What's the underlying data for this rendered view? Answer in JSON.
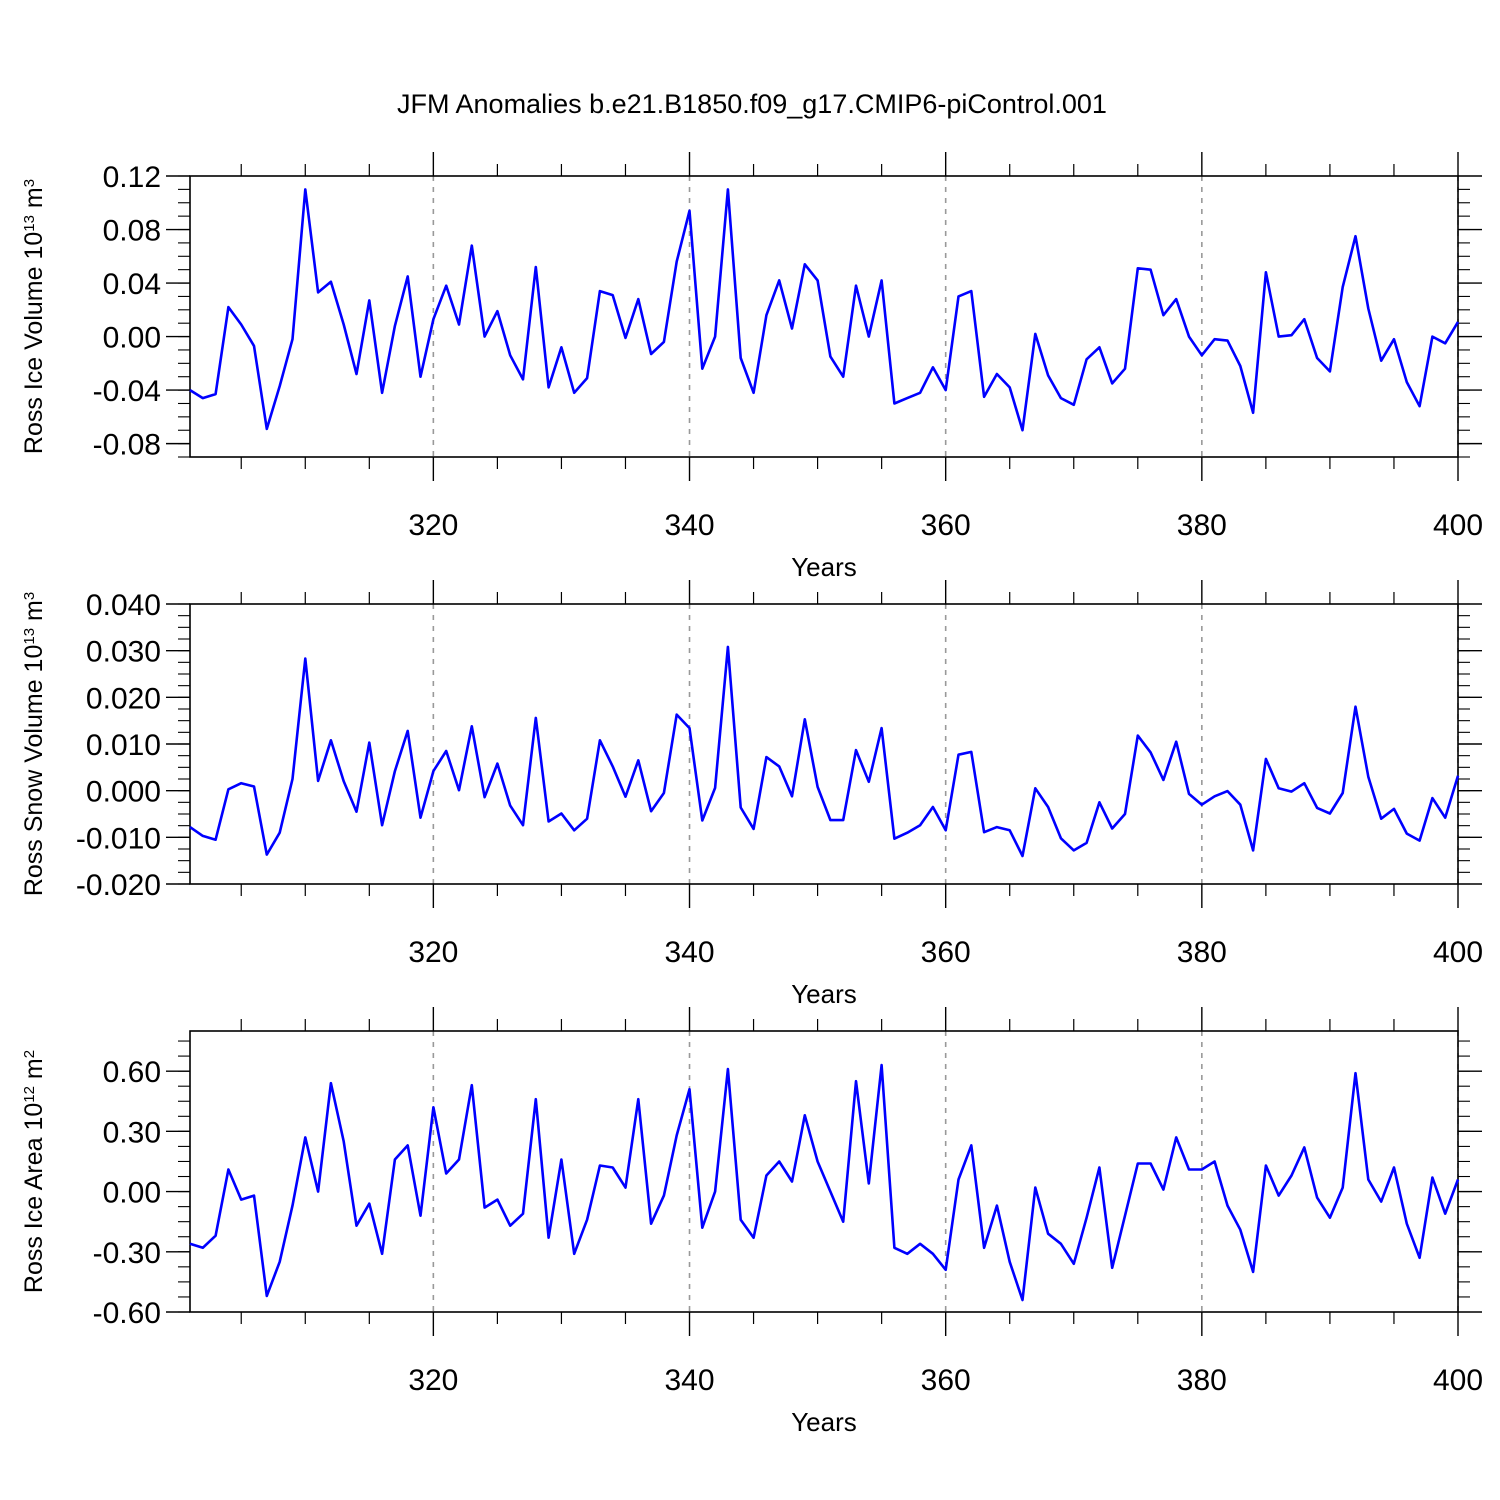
{
  "title": "JFM Anomalies b.e21.B1850.f09_g17.CMIP6-piControl.001",
  "line_color": "#0000ff",
  "chart_data": [
    {
      "type": "line",
      "series": [
        {
          "name": "Ross Ice Volume",
          "values": [
            -0.04,
            -0.046,
            -0.043,
            0.022,
            0.009,
            -0.007,
            -0.069,
            -0.037,
            -0.002,
            0.11,
            0.033,
            0.041,
            0.009,
            -0.028,
            0.027,
            -0.042,
            0.008,
            0.045,
            -0.03,
            0.013,
            0.038,
            0.009,
            0.068,
            0.0,
            0.019,
            -0.014,
            -0.032,
            0.052,
            -0.038,
            -0.008,
            -0.042,
            -0.031,
            0.034,
            0.031,
            -0.001,
            0.028,
            -0.013,
            -0.004,
            0.056,
            0.094,
            -0.024,
            0.0,
            0.11,
            -0.016,
            -0.042,
            0.016,
            0.042,
            0.006,
            0.054,
            0.042,
            -0.015,
            -0.03,
            0.038,
            0.0,
            0.042,
            -0.05,
            -0.046,
            -0.042,
            -0.023,
            -0.04,
            0.03,
            0.034,
            -0.045,
            -0.028,
            -0.038,
            -0.07,
            0.002,
            -0.029,
            -0.046,
            -0.051,
            -0.017,
            -0.008,
            -0.035,
            -0.024,
            0.051,
            0.05,
            0.016,
            0.028,
            0.0,
            -0.014,
            -0.002,
            -0.003,
            -0.022,
            -0.057,
            0.048,
            0.0,
            0.001,
            0.013,
            -0.016,
            -0.026,
            0.037,
            0.075,
            0.021,
            -0.018,
            -0.002,
            -0.034,
            -0.052,
            0.0,
            -0.005,
            0.011
          ]
        }
      ],
      "x": {
        "start": 301,
        "step": 1
      },
      "xlabel": "Years",
      "ylabel": "Ross Ice Volume 10",
      "ylabel_exp": "13",
      "ylabel_unit": " m",
      "ylabel_unit_exp": "3",
      "xlim": [
        301,
        400
      ],
      "ylim": [
        -0.09,
        0.12
      ],
      "yticks": [
        "0.12",
        "0.08",
        "0.04",
        "0.00",
        "-0.04",
        "-0.08"
      ],
      "ytick_values": [
        0.12,
        0.08,
        0.04,
        0.0,
        -0.04,
        -0.08
      ],
      "xticks": [
        "320",
        "340",
        "360",
        "380",
        "400"
      ],
      "xtick_values": [
        320,
        340,
        360,
        380,
        400
      ]
    },
    {
      "type": "line",
      "series": [
        {
          "name": "Ross Snow Volume",
          "values": [
            -0.0078,
            -0.0097,
            -0.0105,
            0.0003,
            0.0016,
            0.0009,
            -0.0137,
            -0.009,
            0.0025,
            0.0283,
            0.0021,
            0.0108,
            0.002,
            -0.0045,
            0.0103,
            -0.0074,
            0.0042,
            0.0128,
            -0.0058,
            0.0042,
            0.0085,
            0.0001,
            0.0138,
            -0.0014,
            0.0058,
            -0.0032,
            -0.0074,
            0.0156,
            -0.0066,
            -0.0049,
            -0.0085,
            -0.006,
            0.0108,
            0.0052,
            -0.0013,
            0.0065,
            -0.0044,
            -0.0005,
            0.0163,
            0.0134,
            -0.0064,
            0.0006,
            0.0308,
            -0.0036,
            -0.0082,
            0.0072,
            0.0052,
            -0.0012,
            0.0153,
            0.0008,
            -0.0063,
            -0.0063,
            0.0087,
            0.0019,
            0.0134,
            -0.0103,
            -0.009,
            -0.0074,
            -0.0035,
            -0.0085,
            0.0077,
            0.0083,
            -0.0089,
            -0.0078,
            -0.0085,
            -0.014,
            0.0005,
            -0.0035,
            -0.0102,
            -0.0128,
            -0.0112,
            -0.0025,
            -0.0081,
            -0.005,
            0.0118,
            0.0082,
            0.0023,
            0.0105,
            -0.0007,
            -0.003,
            -0.0012,
            -0.0001,
            -0.003,
            -0.0128,
            0.0068,
            0.0005,
            -0.0002,
            0.0016,
            -0.0037,
            -0.0049,
            -0.0005,
            0.018,
            0.003,
            -0.006,
            -0.0039,
            -0.0092,
            -0.0107,
            -0.0016,
            -0.0058,
            0.0032
          ]
        }
      ],
      "x": {
        "start": 301,
        "step": 1
      },
      "xlabel": "Years",
      "ylabel": "Ross Snow Volume 10",
      "ylabel_exp": "13",
      "ylabel_unit": " m",
      "ylabel_unit_exp": "3",
      "xlim": [
        301,
        400
      ],
      "ylim": [
        -0.02,
        0.04
      ],
      "yticks": [
        "0.040",
        "0.030",
        "0.020",
        "0.010",
        "0.000",
        "-0.010",
        "-0.020"
      ],
      "ytick_values": [
        0.04,
        0.03,
        0.02,
        0.01,
        0.0,
        -0.01,
        -0.02
      ],
      "xticks": [
        "320",
        "340",
        "360",
        "380",
        "400"
      ],
      "xtick_values": [
        320,
        340,
        360,
        380,
        400
      ]
    },
    {
      "type": "line",
      "series": [
        {
          "name": "Ross Ice Area",
          "values": [
            -0.26,
            -0.28,
            -0.22,
            0.11,
            -0.04,
            -0.02,
            -0.52,
            -0.35,
            -0.07,
            0.27,
            0.0,
            0.54,
            0.25,
            -0.17,
            -0.06,
            -0.31,
            0.16,
            0.23,
            -0.12,
            0.42,
            0.09,
            0.16,
            0.53,
            -0.08,
            -0.04,
            -0.17,
            -0.11,
            0.46,
            -0.23,
            0.16,
            -0.31,
            -0.14,
            0.13,
            0.12,
            0.02,
            0.46,
            -0.16,
            -0.02,
            0.28,
            0.51,
            -0.18,
            0.0,
            0.61,
            -0.14,
            -0.23,
            0.08,
            0.15,
            0.05,
            0.38,
            0.15,
            0.0,
            -0.15,
            0.55,
            0.04,
            0.63,
            -0.28,
            -0.31,
            -0.26,
            -0.31,
            -0.39,
            0.06,
            0.23,
            -0.28,
            -0.07,
            -0.35,
            -0.54,
            0.02,
            -0.21,
            -0.26,
            -0.36,
            -0.13,
            0.12,
            -0.38,
            -0.12,
            0.14,
            0.14,
            0.01,
            0.27,
            0.11,
            0.11,
            0.15,
            -0.07,
            -0.19,
            -0.4,
            0.13,
            -0.02,
            0.08,
            0.22,
            -0.03,
            -0.13,
            0.02,
            0.59,
            0.06,
            -0.05,
            0.12,
            -0.16,
            -0.33,
            0.07,
            -0.11,
            0.06
          ]
        }
      ],
      "x": {
        "start": 301,
        "step": 1
      },
      "xlabel": "Years",
      "ylabel": "Ross Ice Area 10",
      "ylabel_exp": "12",
      "ylabel_unit": " m",
      "ylabel_unit_exp": "2",
      "xlim": [
        301,
        400
      ],
      "ylim": [
        -0.6,
        0.8
      ],
      "yticks": [
        "0.60",
        "0.30",
        "0.00",
        "-0.30",
        "-0.60"
      ],
      "ytick_values": [
        0.6,
        0.3,
        0.0,
        -0.3,
        -0.6
      ],
      "xticks": [
        "320",
        "340",
        "360",
        "380",
        "400"
      ],
      "xtick_values": [
        320,
        340,
        360,
        380,
        400
      ]
    }
  ]
}
